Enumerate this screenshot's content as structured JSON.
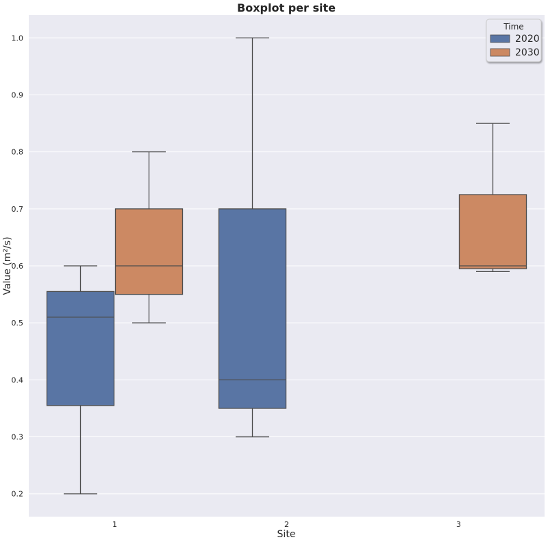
{
  "chart_data": {
    "type": "boxplot",
    "title": "Boxplot per site",
    "xlabel": "Site",
    "ylabel": "Value (m²/s)",
    "categories": [
      "1",
      "2",
      "3"
    ],
    "ylim": [
      0.16,
      1.04
    ],
    "yticks": [
      "0.2",
      "0.3",
      "0.4",
      "0.5",
      "0.6",
      "0.7",
      "0.8",
      "0.9",
      "1.0"
    ],
    "grid": true,
    "legend": {
      "title": "Time",
      "position": "top-right"
    },
    "series": [
      {
        "name": "2020",
        "color": "#5975a4",
        "boxes": [
          {
            "category": "1",
            "whisker_low": 0.2,
            "q1": 0.355,
            "median": 0.51,
            "q3": 0.555,
            "whisker_high": 0.6
          },
          {
            "category": "2",
            "whisker_low": 0.3,
            "q1": 0.35,
            "median": 0.4,
            "q3": 0.7,
            "whisker_high": 1.0
          }
        ]
      },
      {
        "name": "2030",
        "color": "#cc8963",
        "boxes": [
          {
            "category": "1",
            "whisker_low": 0.5,
            "q1": 0.55,
            "median": 0.6,
            "q3": 0.7,
            "whisker_high": 0.8
          },
          {
            "category": "3",
            "whisker_low": 0.59,
            "q1": 0.595,
            "median": 0.6,
            "q3": 0.725,
            "whisker_high": 0.85
          }
        ]
      }
    ]
  }
}
